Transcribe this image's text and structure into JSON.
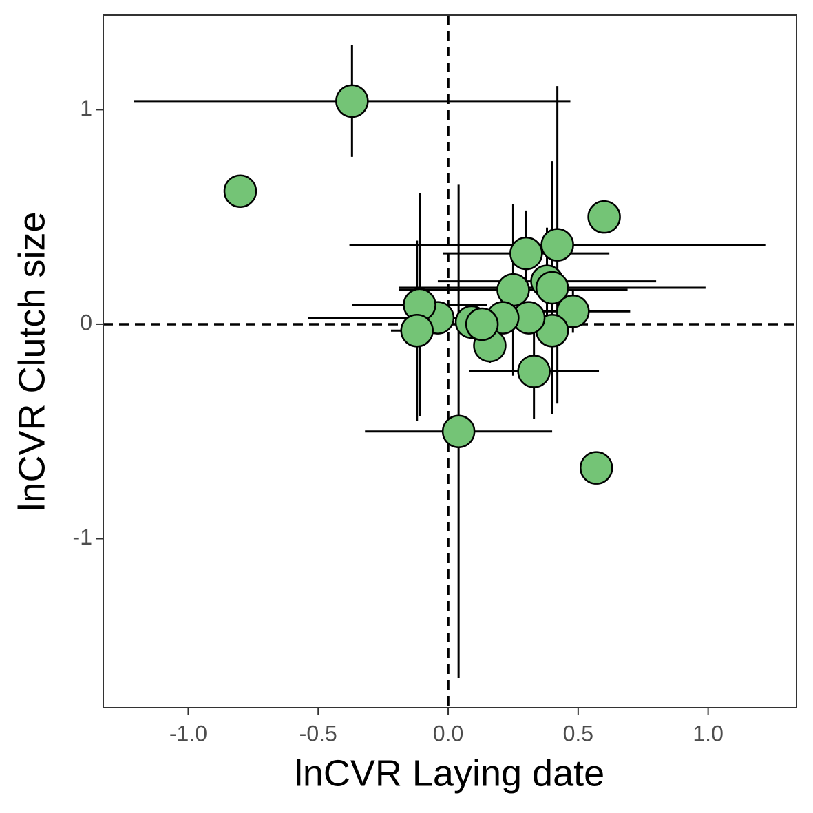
{
  "chart_data": {
    "type": "scatter",
    "x_label": "lnCVR Laying date",
    "y_label": "lnCVR Clutch size",
    "xlim": [
      -1.327,
      1.34
    ],
    "ylim": [
      -1.788,
      1.441
    ],
    "xticks": [
      {
        "value": -1,
        "label": "-1.0"
      },
      {
        "value": -0.5,
        "label": "-0.5"
      },
      {
        "value": 0,
        "label": "0.0"
      },
      {
        "value": 0.5,
        "label": "0.5"
      },
      {
        "value": 1,
        "label": "1.0"
      }
    ],
    "yticks": [
      -1,
      0,
      1
    ],
    "hlines": [
      0
    ],
    "vlines": [
      0
    ],
    "grid": false,
    "series": [
      {
        "color": "#74c476",
        "x": [
          -0.37,
          -0.8,
          0.6,
          0.57,
          0.04,
          0.42,
          0.3,
          0.25,
          0.38,
          0.4,
          0.48,
          0.4,
          0.33,
          0.31,
          0.21,
          0.09,
          0.16,
          0.13,
          -0.04,
          -0.11,
          -0.12
        ],
        "y": [
          1.04,
          0.62,
          0.5,
          -0.67,
          -0.5,
          0.37,
          0.33,
          0.16,
          0.2,
          0.17,
          0.06,
          -0.03,
          -0.22,
          0.03,
          0.03,
          0.01,
          -0.1,
          0.0,
          0.03,
          0.09,
          -0.03
        ],
        "xerr": [
          0.84,
          null,
          null,
          null,
          0.36,
          0.8,
          0.32,
          0.44,
          0.42,
          0.59,
          0.22,
          null,
          0.25,
          null,
          null,
          null,
          null,
          null,
          0.5,
          0.26,
          0.1
        ],
        "yerr": [
          0.26,
          null,
          null,
          null,
          1.15,
          0.74,
          0.2,
          0.4,
          0.25,
          0.59,
          0.1,
          0.35,
          0.22,
          null,
          null,
          null,
          0.08,
          null,
          null,
          0.52,
          0.42
        ]
      }
    ]
  }
}
